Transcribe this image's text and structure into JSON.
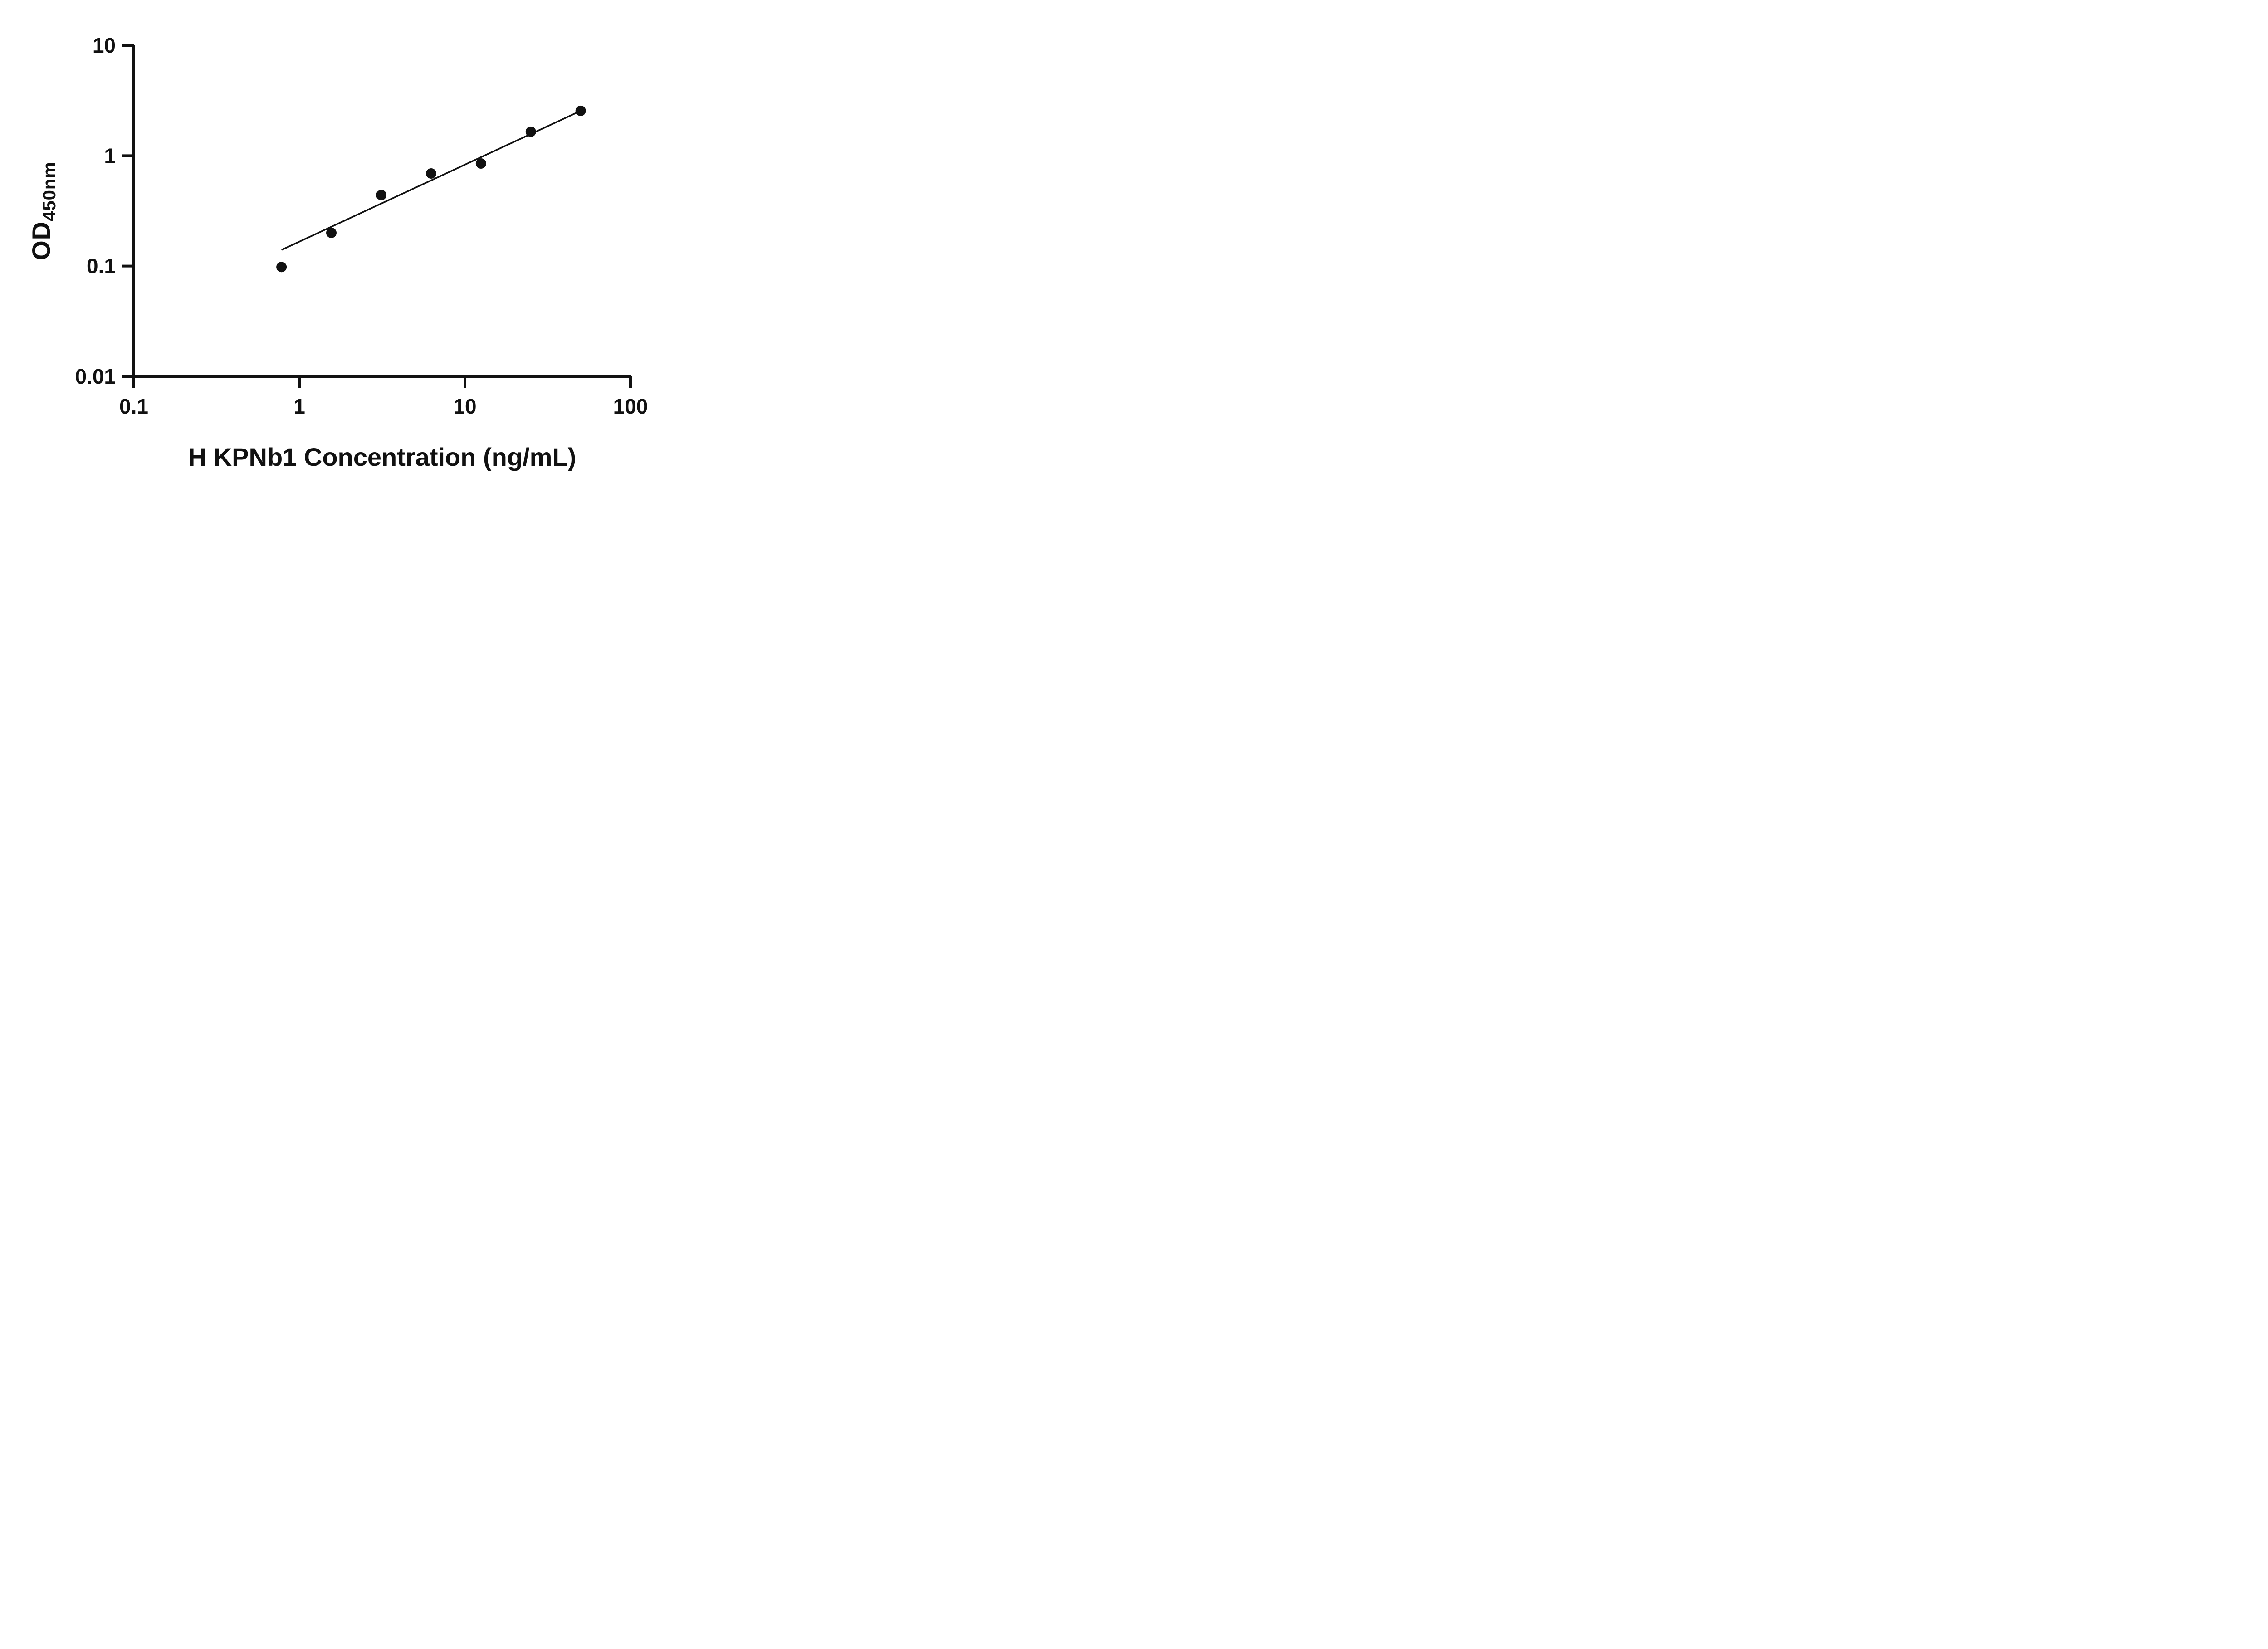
{
  "figure": {
    "background": "#ffffff"
  },
  "chart_data": {
    "type": "scatter",
    "title": "",
    "xlabel": "H KPNb1 Concentration (ng/mL)",
    "ylabel": "OD",
    "ylabel_sub": "450nm",
    "x_scale": "log",
    "y_scale": "log",
    "xlim": [
      0.1,
      100
    ],
    "ylim": [
      0.01,
      10
    ],
    "x_ticks": [
      0.1,
      1,
      10,
      100
    ],
    "x_tick_labels": [
      "0.1",
      "1",
      "10",
      "100"
    ],
    "y_ticks": [
      0.01,
      0.1,
      1,
      10
    ],
    "y_tick_labels": [
      "0.01",
      "0.1",
      "1",
      "10"
    ],
    "grid": false,
    "legend": "none",
    "axis_color": "#111111",
    "marker_color": "#111111",
    "line_color": "#111111",
    "points": [
      {
        "x": 0.78,
        "y": 0.098
      },
      {
        "x": 1.56,
        "y": 0.2
      },
      {
        "x": 3.125,
        "y": 0.44
      },
      {
        "x": 6.25,
        "y": 0.69
      },
      {
        "x": 12.5,
        "y": 0.85
      },
      {
        "x": 25,
        "y": 1.65
      },
      {
        "x": 50,
        "y": 2.55
      }
    ],
    "trend_line": {
      "x1": 0.78,
      "y1": 0.14,
      "x2": 50,
      "y2": 2.55
    }
  }
}
